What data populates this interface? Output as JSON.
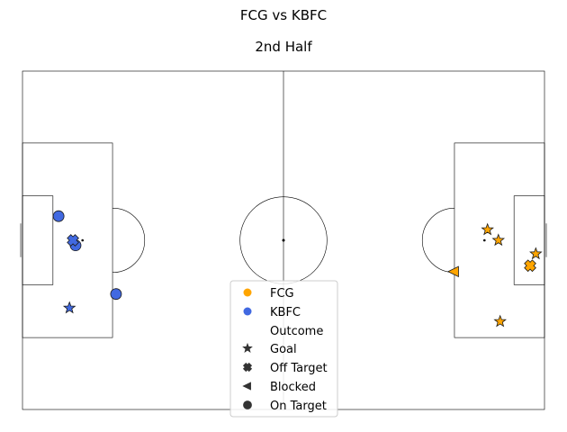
{
  "chart_data": {
    "type": "scatter",
    "title": "FCG vs KBFC",
    "subtitle": "2nd Half",
    "pitch": {
      "length": 120,
      "width": 80
    },
    "teams": [
      {
        "name": "FCG",
        "color": "#FFA500"
      },
      {
        "name": "KBFC",
        "color": "#4169E1"
      }
    ],
    "outcomes": [
      {
        "name": "Goal",
        "marker": "star"
      },
      {
        "name": "Off Target",
        "marker": "cross"
      },
      {
        "name": "Blocked",
        "marker": "triangle"
      },
      {
        "name": "On Target",
        "marker": "circle"
      }
    ],
    "legend": {
      "placement": "bottom-center",
      "team_entries": [
        "FCG",
        "KBFC"
      ],
      "outcome_header": "Outcome",
      "outcome_entries": [
        "Goal",
        "Off Target",
        "Blocked",
        "On Target"
      ]
    },
    "shots": [
      {
        "team": "KBFC",
        "outcome": "On Target",
        "x": 8.3,
        "y": 34.3
      },
      {
        "team": "KBFC",
        "outcome": "On Target",
        "x": 12.2,
        "y": 41.2
      },
      {
        "team": "KBFC",
        "outcome": "Off Target",
        "x": 11.6,
        "y": 40.0
      },
      {
        "team": "KBFC",
        "outcome": "On Target",
        "x": 21.5,
        "y": 52.7
      },
      {
        "team": "KBFC",
        "outcome": "Goal",
        "x": 10.8,
        "y": 56.0
      },
      {
        "team": "FCG",
        "outcome": "Goal",
        "x": 106.9,
        "y": 37.5
      },
      {
        "team": "FCG",
        "outcome": "Goal",
        "x": 109.4,
        "y": 40.0
      },
      {
        "team": "FCG",
        "outcome": "Goal",
        "x": 118.0,
        "y": 43.2
      },
      {
        "team": "FCG",
        "outcome": "Off Target",
        "x": 116.7,
        "y": 46.0
      },
      {
        "team": "FCG",
        "outcome": "Blocked",
        "x": 99.2,
        "y": 47.4
      },
      {
        "team": "FCG",
        "outcome": "Goal",
        "x": 109.8,
        "y": 59.2
      }
    ]
  }
}
